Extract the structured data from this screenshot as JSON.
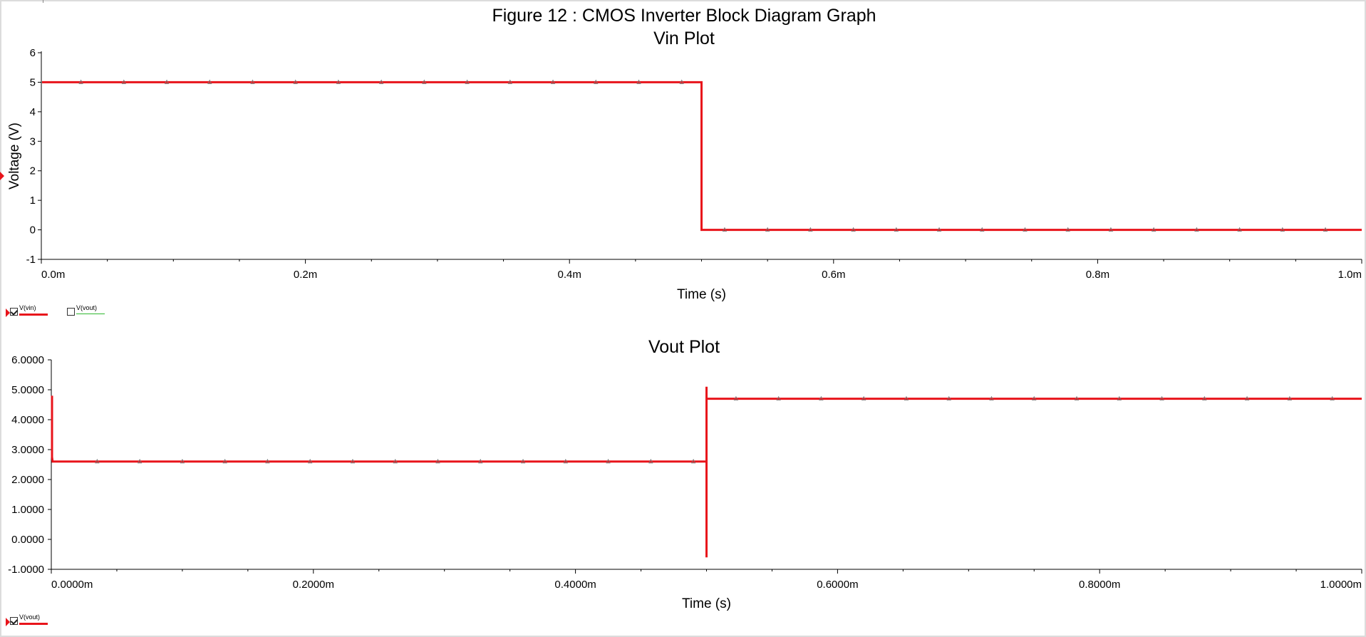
{
  "figure_title": "Figure 12 : CMOS Inverter Block Diagram Graph",
  "colors": {
    "trace": "#e8141b",
    "vout_legend_top": "#2eb82e",
    "marker": "#777777"
  },
  "legend_top": [
    {
      "label": "V(vin)",
      "checked": true,
      "color": "#e8141b"
    },
    {
      "label": "V(vout)",
      "checked": false,
      "color": "#2eb82e"
    }
  ],
  "legend_bottom": [
    {
      "label": "V(vout)",
      "checked": true,
      "color": "#e8141b"
    }
  ],
  "chart_data": [
    {
      "type": "line",
      "title": "Vin Plot",
      "xlabel": "Time (s)",
      "ylabel": "Voltage (V)",
      "xlim": [
        0,
        1.0
      ],
      "ylim": [
        -1,
        6
      ],
      "x_unit": "ms",
      "xticks": [
        0,
        0.2,
        0.4,
        0.6,
        0.8,
        1.0
      ],
      "xtick_labels": [
        "0.0m",
        "0.2m",
        "0.4m",
        "0.6m",
        "0.8m",
        "1.0m"
      ],
      "yticks": [
        -1,
        0,
        1,
        2,
        3,
        4,
        5,
        6
      ],
      "ytick_labels": [
        "-1",
        "0",
        "1",
        "2",
        "3",
        "4",
        "5",
        "6"
      ],
      "grid": false,
      "series": [
        {
          "name": "V(vin)",
          "x": [
            0,
            0.5,
            0.5,
            1.0
          ],
          "y": [
            5,
            5,
            0,
            0
          ]
        }
      ]
    },
    {
      "type": "line",
      "title": "Vout Plot",
      "xlabel": "Time (s)",
      "ylabel": "",
      "xlim": [
        0,
        1.0
      ],
      "ylim": [
        -1.0,
        6.0
      ],
      "x_unit": "ms",
      "xticks": [
        0,
        0.2,
        0.4,
        0.6,
        0.8,
        1.0
      ],
      "xtick_labels": [
        "0.0000m",
        "0.2000m",
        "0.4000m",
        "0.6000m",
        "0.8000m",
        "1.0000m"
      ],
      "yticks": [
        -1,
        0,
        1,
        2,
        3,
        4,
        5,
        6
      ],
      "ytick_labels": [
        "-1.0000",
        "0.0000",
        "1.0000",
        "2.0000",
        "3.0000",
        "4.0000",
        "5.0000",
        "6.0000"
      ],
      "grid": false,
      "series": [
        {
          "name": "V(vout)",
          "x": [
            0,
            0,
            0.001,
            0.5,
            0.5,
            0.5,
            0.5,
            0.5,
            1.0
          ],
          "y": [
            4.8,
            2.75,
            2.6,
            2.6,
            -0.6,
            5.1,
            4.7,
            4.7,
            4.7
          ]
        }
      ]
    }
  ]
}
